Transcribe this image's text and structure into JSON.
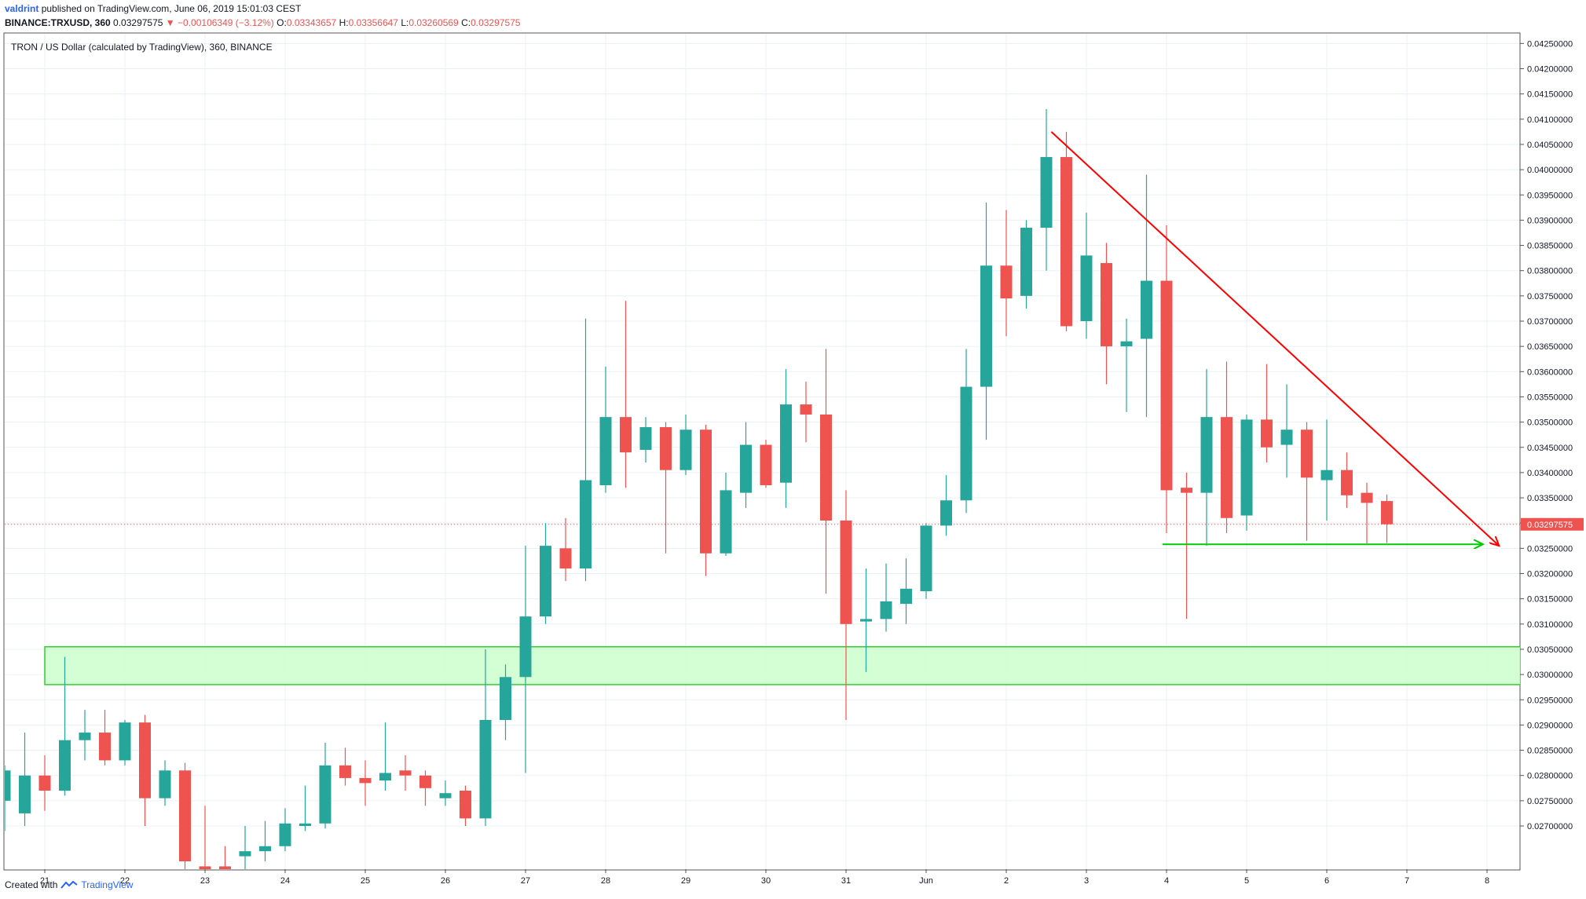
{
  "header": {
    "author": "valdrint",
    "published_text": "published on TradingView.com, June 06, 2019 15:01:03 CEST",
    "symbol_line": "BINANCE:TRXUSD, 360",
    "price": "0.03297575",
    "change_arrow": "▼",
    "change": "−0.00106349 (−3.12%)",
    "o_label": "O:",
    "o_value": "0.03343657",
    "h_label": "H:",
    "h_value": "0.03356647",
    "l_label": "L:",
    "l_value": "0.03260569",
    "c_label": "C:",
    "c_value": "0.03297575"
  },
  "footer": {
    "created_with": "Created with",
    "brand": "TradingView"
  },
  "chart_data": {
    "type": "candlestick",
    "title": "TRON / US Dollar (calculated by TradingView), 360, BINANCE",
    "timeframe": "360",
    "ylim": [
      0.0266,
      0.0426
    ],
    "y_ticks": [
      "0.02700000",
      "0.02750000",
      "0.02800000",
      "0.02850000",
      "0.02900000",
      "0.02950000",
      "0.03000000",
      "0.03050000",
      "0.03100000",
      "0.03150000",
      "0.03200000",
      "0.03250000",
      "0.03300000",
      "0.03350000",
      "0.03400000",
      "0.03450000",
      "0.03500000",
      "0.03550000",
      "0.03600000",
      "0.03650000",
      "0.03700000",
      "0.03750000",
      "0.03800000",
      "0.03850000",
      "0.03900000",
      "0.03950000",
      "0.04000000",
      "0.04050000",
      "0.04100000",
      "0.04150000",
      "0.04200000",
      "0.04250000"
    ],
    "x_ticks": [
      {
        "label": "21",
        "t": 0
      },
      {
        "label": "22",
        "t": 4
      },
      {
        "label": "23",
        "t": 8
      },
      {
        "label": "24",
        "t": 12
      },
      {
        "label": "25",
        "t": 16
      },
      {
        "label": "26",
        "t": 20
      },
      {
        "label": "27",
        "t": 24
      },
      {
        "label": "28",
        "t": 28
      },
      {
        "label": "29",
        "t": 32
      },
      {
        "label": "30",
        "t": 36
      },
      {
        "label": "31",
        "t": 40
      },
      {
        "label": "Jun",
        "t": 44
      },
      {
        "label": "2",
        "t": 48
      },
      {
        "label": "3",
        "t": 52
      },
      {
        "label": "4",
        "t": 56
      },
      {
        "label": "5",
        "t": 60
      },
      {
        "label": "6",
        "t": 64
      },
      {
        "label": "7",
        "t": 68
      },
      {
        "label": "8",
        "t": 72
      }
    ],
    "candles": [
      {
        "t": -2,
        "o": 0.0275,
        "h": 0.0282,
        "l": 0.0269,
        "c": 0.0281
      },
      {
        "t": -1,
        "o": 0.02725,
        "h": 0.02885,
        "l": 0.027,
        "c": 0.028
      },
      {
        "t": 0,
        "o": 0.028,
        "h": 0.0284,
        "l": 0.0273,
        "c": 0.0277
      },
      {
        "t": 1,
        "o": 0.0277,
        "h": 0.03035,
        "l": 0.0276,
        "c": 0.0287
      },
      {
        "t": 2,
        "o": 0.0287,
        "h": 0.0293,
        "l": 0.0283,
        "c": 0.02885
      },
      {
        "t": 3,
        "o": 0.02885,
        "h": 0.0293,
        "l": 0.0282,
        "c": 0.0283
      },
      {
        "t": 4,
        "o": 0.0283,
        "h": 0.0291,
        "l": 0.0282,
        "c": 0.02905
      },
      {
        "t": 5,
        "o": 0.02905,
        "h": 0.0292,
        "l": 0.027,
        "c": 0.02755
      },
      {
        "t": 6,
        "o": 0.02755,
        "h": 0.0283,
        "l": 0.0274,
        "c": 0.0281
      },
      {
        "t": 7,
        "o": 0.0281,
        "h": 0.02825,
        "l": 0.026,
        "c": 0.0263
      },
      {
        "t": 8,
        "o": 0.0262,
        "h": 0.0274,
        "l": 0.0256,
        "c": 0.0259
      },
      {
        "t": 9,
        "o": 0.0262,
        "h": 0.0266,
        "l": 0.0255,
        "c": 0.0261
      },
      {
        "t": 10,
        "o": 0.0264,
        "h": 0.027,
        "l": 0.026,
        "c": 0.0265
      },
      {
        "t": 11,
        "o": 0.0265,
        "h": 0.0271,
        "l": 0.0263,
        "c": 0.0266
      },
      {
        "t": 12,
        "o": 0.0266,
        "h": 0.02735,
        "l": 0.0265,
        "c": 0.02705
      },
      {
        "t": 13,
        "o": 0.027,
        "h": 0.0278,
        "l": 0.0269,
        "c": 0.02705
      },
      {
        "t": 14,
        "o": 0.02705,
        "h": 0.02865,
        "l": 0.02695,
        "c": 0.0282
      },
      {
        "t": 15,
        "o": 0.0282,
        "h": 0.02855,
        "l": 0.0278,
        "c": 0.02795
      },
      {
        "t": 16,
        "o": 0.02795,
        "h": 0.0283,
        "l": 0.0274,
        "c": 0.02785
      },
      {
        "t": 17,
        "o": 0.0279,
        "h": 0.02905,
        "l": 0.0277,
        "c": 0.02805
      },
      {
        "t": 18,
        "o": 0.0281,
        "h": 0.0284,
        "l": 0.0277,
        "c": 0.028
      },
      {
        "t": 19,
        "o": 0.028,
        "h": 0.0281,
        "l": 0.0274,
        "c": 0.02775
      },
      {
        "t": 20,
        "o": 0.02755,
        "h": 0.0279,
        "l": 0.0274,
        "c": 0.02765
      },
      {
        "t": 21,
        "o": 0.0277,
        "h": 0.0278,
        "l": 0.027,
        "c": 0.02715
      },
      {
        "t": 22,
        "o": 0.02715,
        "h": 0.0305,
        "l": 0.027,
        "c": 0.0291
      },
      {
        "t": 23,
        "o": 0.0291,
        "h": 0.0302,
        "l": 0.0287,
        "c": 0.02995
      },
      {
        "t": 24,
        "o": 0.02995,
        "h": 0.03255,
        "l": 0.02805,
        "c": 0.03115
      },
      {
        "t": 25,
        "o": 0.03115,
        "h": 0.033,
        "l": 0.031,
        "c": 0.03255
      },
      {
        "t": 26,
        "o": 0.0325,
        "h": 0.0331,
        "l": 0.03185,
        "c": 0.0321
      },
      {
        "t": 27,
        "o": 0.0321,
        "h": 0.03705,
        "l": 0.03185,
        "c": 0.03385
      },
      {
        "t": 28,
        "o": 0.03375,
        "h": 0.0361,
        "l": 0.0336,
        "c": 0.0351
      },
      {
        "t": 29,
        "o": 0.0351,
        "h": 0.0374,
        "l": 0.0337,
        "c": 0.0344
      },
      {
        "t": 30,
        "o": 0.03445,
        "h": 0.0351,
        "l": 0.0342,
        "c": 0.0349
      },
      {
        "t": 31,
        "o": 0.0349,
        "h": 0.035,
        "l": 0.0324,
        "c": 0.03405
      },
      {
        "t": 32,
        "o": 0.03405,
        "h": 0.03515,
        "l": 0.03395,
        "c": 0.03485
      },
      {
        "t": 33,
        "o": 0.03485,
        "h": 0.03495,
        "l": 0.03195,
        "c": 0.0324
      },
      {
        "t": 34,
        "o": 0.0324,
        "h": 0.034,
        "l": 0.03235,
        "c": 0.03365
      },
      {
        "t": 35,
        "o": 0.0336,
        "h": 0.035,
        "l": 0.0333,
        "c": 0.03455
      },
      {
        "t": 36,
        "o": 0.03455,
        "h": 0.03465,
        "l": 0.0337,
        "c": 0.03375
      },
      {
        "t": 37,
        "o": 0.0338,
        "h": 0.03605,
        "l": 0.0333,
        "c": 0.03535
      },
      {
        "t": 38,
        "o": 0.03535,
        "h": 0.0358,
        "l": 0.0346,
        "c": 0.03515
      },
      {
        "t": 39,
        "o": 0.03515,
        "h": 0.03645,
        "l": 0.0316,
        "c": 0.03305
      },
      {
        "t": 40,
        "o": 0.03305,
        "h": 0.03365,
        "l": 0.0291,
        "c": 0.031
      },
      {
        "t": 41,
        "o": 0.03105,
        "h": 0.0321,
        "l": 0.03005,
        "c": 0.0311
      },
      {
        "t": 42,
        "o": 0.0311,
        "h": 0.0322,
        "l": 0.03085,
        "c": 0.03145
      },
      {
        "t": 43,
        "o": 0.0314,
        "h": 0.0323,
        "l": 0.031,
        "c": 0.0317
      },
      {
        "t": 44,
        "o": 0.03165,
        "h": 0.033,
        "l": 0.0315,
        "c": 0.03295
      },
      {
        "t": 45,
        "o": 0.03295,
        "h": 0.03395,
        "l": 0.03275,
        "c": 0.03345
      },
      {
        "t": 46,
        "o": 0.03345,
        "h": 0.03645,
        "l": 0.0332,
        "c": 0.0357
      },
      {
        "t": 47,
        "o": 0.0357,
        "h": 0.03935,
        "l": 0.03465,
        "c": 0.0381
      },
      {
        "t": 48,
        "o": 0.0381,
        "h": 0.0392,
        "l": 0.0367,
        "c": 0.03745
      },
      {
        "t": 49,
        "o": 0.0375,
        "h": 0.039,
        "l": 0.03725,
        "c": 0.03885
      },
      {
        "t": 50,
        "o": 0.03885,
        "h": 0.0412,
        "l": 0.038,
        "c": 0.04025
      },
      {
        "t": 51,
        "o": 0.04025,
        "h": 0.04075,
        "l": 0.0368,
        "c": 0.0369
      },
      {
        "t": 52,
        "o": 0.037,
        "h": 0.03915,
        "l": 0.03665,
        "c": 0.0383
      },
      {
        "t": 53,
        "o": 0.03815,
        "h": 0.03855,
        "l": 0.03575,
        "c": 0.0365
      },
      {
        "t": 54,
        "o": 0.0365,
        "h": 0.03705,
        "l": 0.0352,
        "c": 0.0366
      },
      {
        "t": 55,
        "o": 0.03665,
        "h": 0.0399,
        "l": 0.0351,
        "c": 0.0378
      },
      {
        "t": 56,
        "o": 0.0378,
        "h": 0.0389,
        "l": 0.0328,
        "c": 0.03365
      },
      {
        "t": 57,
        "o": 0.0337,
        "h": 0.034,
        "l": 0.0311,
        "c": 0.0336
      },
      {
        "t": 58,
        "o": 0.0336,
        "h": 0.03605,
        "l": 0.03255,
        "c": 0.0351
      },
      {
        "t": 59,
        "o": 0.0351,
        "h": 0.0362,
        "l": 0.0328,
        "c": 0.0331
      },
      {
        "t": 60,
        "o": 0.03315,
        "h": 0.03515,
        "l": 0.03285,
        "c": 0.03505
      },
      {
        "t": 61,
        "o": 0.03505,
        "h": 0.03615,
        "l": 0.0342,
        "c": 0.0345
      },
      {
        "t": 62,
        "o": 0.03455,
        "h": 0.03575,
        "l": 0.0339,
        "c": 0.03485
      },
      {
        "t": 63,
        "o": 0.03485,
        "h": 0.035,
        "l": 0.03265,
        "c": 0.0339
      },
      {
        "t": 64,
        "o": 0.03385,
        "h": 0.03505,
        "l": 0.03305,
        "c": 0.03405
      },
      {
        "t": 65,
        "o": 0.03405,
        "h": 0.0344,
        "l": 0.0333,
        "c": 0.03355
      },
      {
        "t": 66,
        "o": 0.0336,
        "h": 0.0338,
        "l": 0.0326,
        "c": 0.0334
      },
      {
        "t": 67,
        "o": 0.03343657,
        "h": 0.03356647,
        "l": 0.03260569,
        "c": 0.03297575
      }
    ],
    "last_price_label": "0.03297575",
    "annotations": {
      "support_zone": {
        "t_start": 0,
        "t_end": 75.8,
        "y_low": 0.0298,
        "y_high": 0.03055,
        "fill": "#ccffcc",
        "stroke": "#33cc33"
      },
      "trendline": {
        "t1": 50.25,
        "y1": 0.04075,
        "t2": 72.6,
        "y2": 0.03255,
        "color": "#ff0000"
      },
      "support_line": {
        "t1": 55.8,
        "t2": 71.8,
        "y": 0.03258,
        "color": "#00cc00"
      }
    },
    "colors": {
      "up": "#26a69a",
      "down": "#ef5350",
      "grid": "#e8f0f5",
      "axis": "#555555"
    },
    "grid": true
  }
}
